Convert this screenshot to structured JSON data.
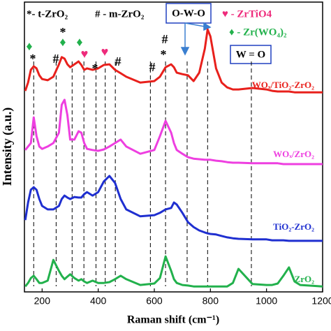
{
  "chart_data": {
    "type": "line",
    "x_label": "Raman shift (cm⁻¹)",
    "y_label": "Intensity (a.u.)",
    "xlim": [
      137,
      1200
    ],
    "xticks": [
      200,
      400,
      600,
      800,
      1000,
      1200
    ],
    "ylim": [
      0,
      100
    ],
    "x": [
      140,
      150,
      160,
      170,
      180,
      190,
      200,
      220,
      240,
      260,
      270,
      280,
      290,
      300,
      315,
      330,
      340,
      350,
      360,
      380,
      400,
      420,
      440,
      460,
      480,
      500,
      550,
      600,
      620,
      640,
      660,
      670,
      680,
      700,
      720,
      740,
      760,
      780,
      790,
      800,
      820,
      840,
      860,
      880,
      900,
      950,
      1000,
      1020,
      1040,
      1060,
      1080,
      1100,
      1120,
      1150,
      1200
    ],
    "series": [
      {
        "name": "WOₓ/TiO₂-ZrO₂",
        "color": "#e8201c",
        "values": [
          69.7,
          72.6,
          77.0,
          78.2,
          77.5,
          75.1,
          73.8,
          73.4,
          74.6,
          78.9,
          81.4,
          80.9,
          78.9,
          77.9,
          78.9,
          79.9,
          78.7,
          77.0,
          77.5,
          77.0,
          77.5,
          78.7,
          78.9,
          77.0,
          75.8,
          74.6,
          72.6,
          73.1,
          74.6,
          77.9,
          78.9,
          77.9,
          76.0,
          75.5,
          75.1,
          73.1,
          76.0,
          84.3,
          91.0,
          88.6,
          77.5,
          72.6,
          70.9,
          70.2,
          70.2,
          70.7,
          70.2,
          69.7,
          69.5,
          69.5,
          69.5,
          69.2,
          69.2,
          69.2,
          69.2
        ]
      },
      {
        "name": "WOₓ/ZrO₂",
        "color": "#ee3fe0",
        "values": [
          49.2,
          50.4,
          51.6,
          60.5,
          54.0,
          50.4,
          49.6,
          50.4,
          51.6,
          55.2,
          64.9,
          66.6,
          61.3,
          52.8,
          52.8,
          55.7,
          55.2,
          51.6,
          49.6,
          49.2,
          48.9,
          49.4,
          50.4,
          51.6,
          52.8,
          50.4,
          47.9,
          49.2,
          54.0,
          59.3,
          55.2,
          51.6,
          49.2,
          47.9,
          46.7,
          46.2,
          46.0,
          45.8,
          45.8,
          45.8,
          45.5,
          45.3,
          45.0,
          44.8,
          44.8,
          44.6,
          44.6,
          44.6,
          44.6,
          44.3,
          44.3,
          44.3,
          44.3,
          44.3,
          44.3
        ]
      },
      {
        "name": "TiO₂-ZrO₂",
        "color": "#1f2fd0",
        "values": [
          24.9,
          31.0,
          35.4,
          36.3,
          35.4,
          32.2,
          29.8,
          28.6,
          28.6,
          29.8,
          32.2,
          33.4,
          32.7,
          32.2,
          32.9,
          32.7,
          32.7,
          33.9,
          34.6,
          33.4,
          34.6,
          38.3,
          40.2,
          37.8,
          32.2,
          28.6,
          26.2,
          26.6,
          27.4,
          28.6,
          29.1,
          31.0,
          30.3,
          27.4,
          24.2,
          22.5,
          21.3,
          20.6,
          20.3,
          20.1,
          19.9,
          19.4,
          18.9,
          18.6,
          18.4,
          18.2,
          18.2,
          17.9,
          17.9,
          17.9,
          17.7,
          17.7,
          17.7,
          17.7,
          17.7
        ]
      },
      {
        "name": "ZrO₂",
        "color": "#22b14c",
        "values": [
          1.9,
          3.1,
          4.8,
          5.6,
          4.4,
          3.1,
          3.1,
          3.9,
          11.1,
          7.3,
          5.6,
          4.4,
          5.3,
          6.1,
          4.8,
          3.9,
          4.4,
          3.6,
          3.1,
          3.9,
          3.1,
          3.1,
          3.4,
          4.4,
          5.6,
          4.4,
          2.4,
          2.9,
          4.8,
          12.3,
          7.3,
          4.4,
          3.1,
          2.4,
          2.2,
          1.9,
          1.9,
          1.9,
          1.9,
          1.9,
          1.9,
          1.9,
          1.9,
          3.1,
          8.0,
          2.7,
          2.4,
          2.4,
          2.9,
          5.6,
          8.5,
          3.6,
          2.4,
          2.2,
          1.9
        ]
      }
    ],
    "reference_lines": [
      170,
      250,
      307,
      349,
      392,
      425,
      461,
      586,
      640,
      717,
      790,
      946
    ],
    "annotations": [
      "*- t-ZrO₂",
      "# - m-ZrO₂",
      "♥ - ZrTiO4",
      "♦ - Zr(WO₄)₂",
      "O-W-O",
      "W = O"
    ],
    "peak_markers": [
      "♦",
      "*",
      "*",
      "♦",
      "♦",
      "#",
      "#",
      "♥",
      "*",
      "♥",
      "#",
      "#",
      "#",
      "*"
    ]
  }
}
